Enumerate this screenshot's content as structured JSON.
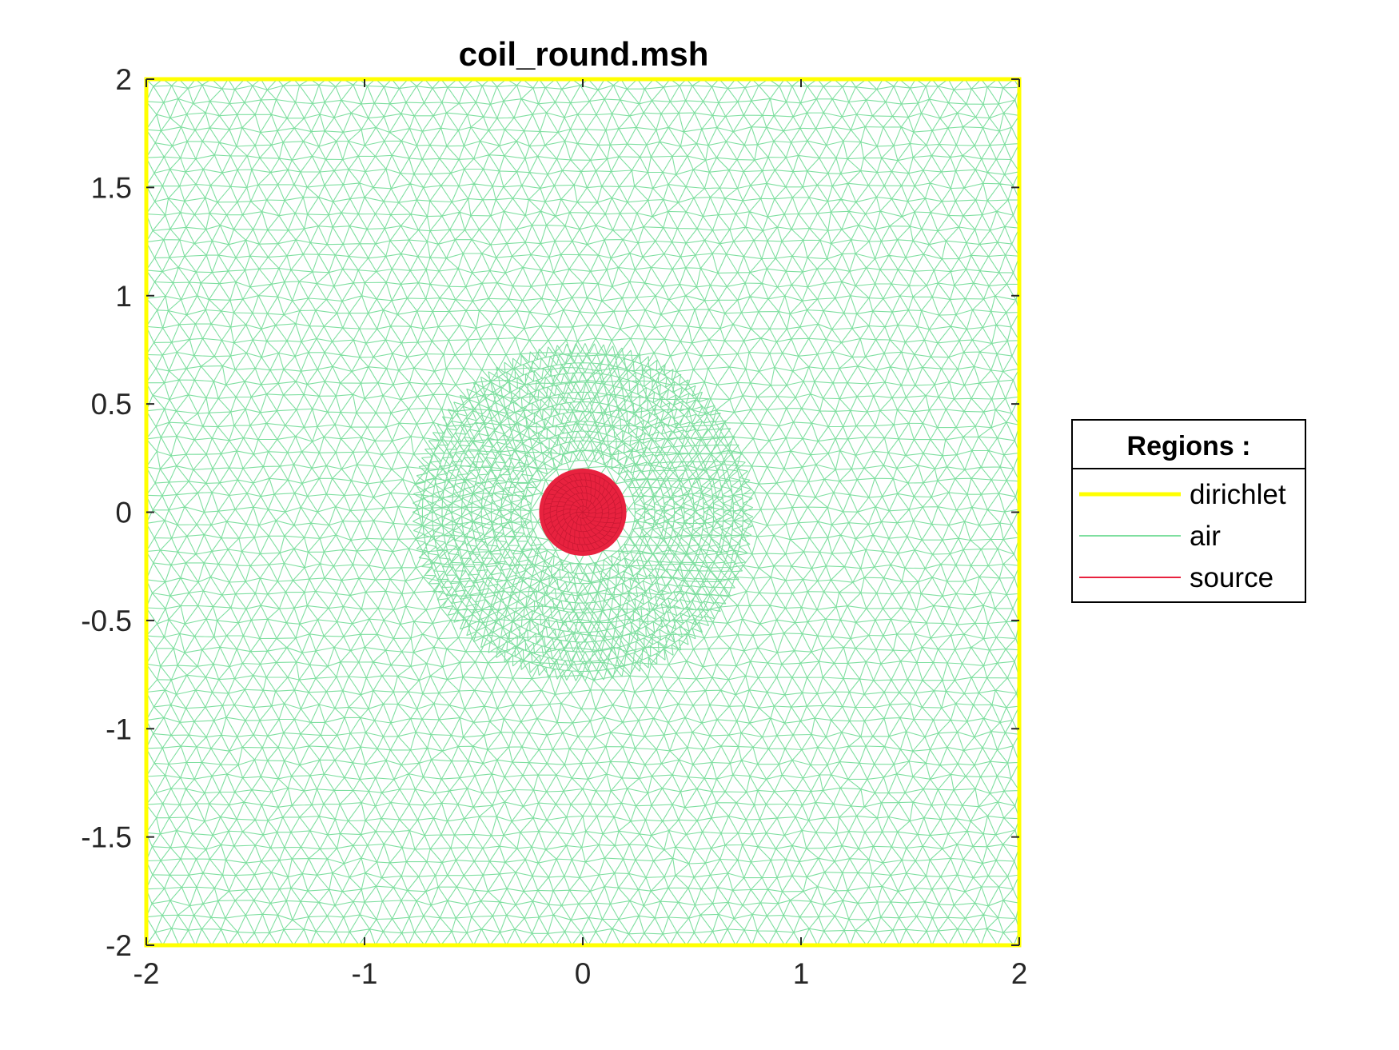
{
  "chart_data": {
    "type": "mesh",
    "title": "coil_round.msh",
    "xlabel": "",
    "ylabel": "",
    "xlim": [
      -2,
      2
    ],
    "ylim": [
      -2,
      2
    ],
    "xticks": [
      -2,
      -1,
      0,
      1,
      2
    ],
    "xtick_labels": [
      "-2",
      "-1",
      "0",
      "1",
      "2"
    ],
    "yticks": [
      -2,
      -1.5,
      -1,
      -0.5,
      0,
      0.5,
      1,
      1.5,
      2
    ],
    "ytick_labels": [
      "-2",
      "-1.5",
      "-1",
      "-0.5",
      "0",
      "0.5",
      "1",
      "1.5",
      "2"
    ],
    "grid": false,
    "legend": {
      "title": "Regions :",
      "placement": "outside-right",
      "entries": [
        {
          "label": "dirichlet",
          "color": "#ffff00"
        },
        {
          "label": "air",
          "color": "#7fdfa0"
        },
        {
          "label": "source",
          "color": "#e8223f"
        }
      ]
    },
    "regions": [
      {
        "name": "dirichlet",
        "shape": "square-boundary",
        "x_range": [
          -2,
          2
        ],
        "y_range": [
          -2,
          2
        ],
        "color": "#ffff00"
      },
      {
        "name": "air",
        "shape": "triangular-mesh",
        "x_range": [
          -2,
          2
        ],
        "y_range": [
          -2,
          2
        ],
        "color": "#7fdfa0"
      },
      {
        "name": "source",
        "shape": "disk",
        "center": [
          0,
          0
        ],
        "radius": 0.2,
        "color": "#e8223f"
      }
    ]
  }
}
